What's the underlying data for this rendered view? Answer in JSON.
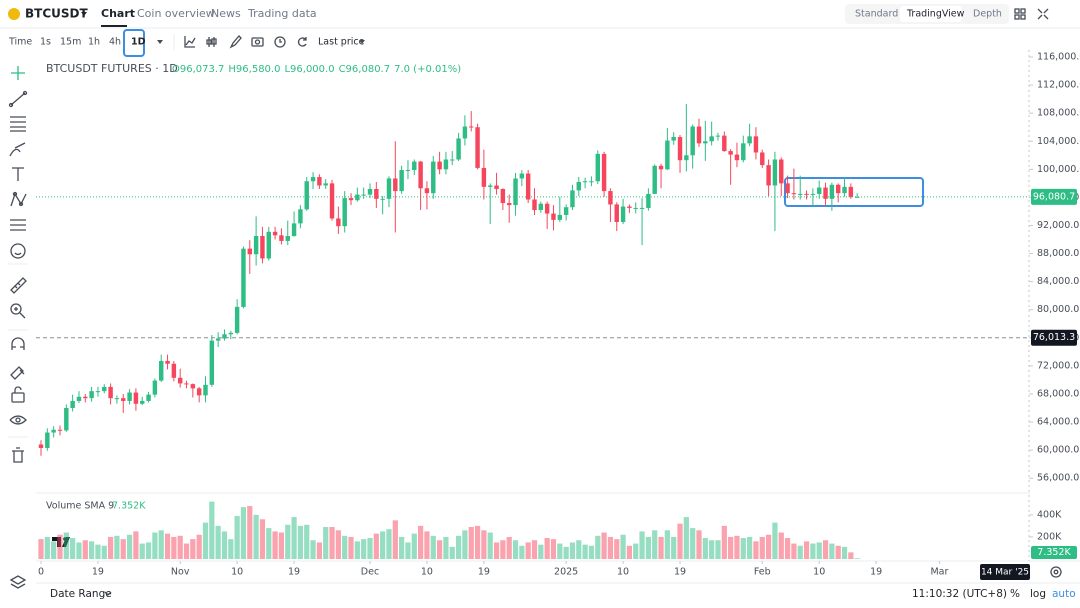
{
  "ui": {
    "symbol": "BTCUSDT",
    "tabs": [
      "Chart",
      "Coin overview",
      "News",
      "Trading data"
    ],
    "views": [
      "Standard",
      "TradingView",
      "Depth"
    ],
    "intervals": [
      "Time",
      "1s",
      "15m",
      "1h",
      "4h",
      "1D"
    ],
    "price_type": "Last price",
    "legend": [
      "O96,073.7",
      "H96,580.0",
      "L96,000.0",
      "C96,080.7",
      "7.0 (+0.01%)"
    ],
    "crosshair_date": "14 Mar '25",
    "date_range": "Date Range",
    "clock": "11:10:32 (UTC+8)",
    "scale_options": [
      "%",
      "log",
      "auto"
    ]
  },
  "chart_data": {
    "type": "candlestick",
    "title": "BTCUSDT FUTURES · 1D",
    "up_color": "#2ebd85",
    "down_color": "#f6465d",
    "grid": false,
    "open": [
      60800,
      60300,
      62500,
      62900,
      62800,
      66000,
      67000,
      67600,
      67400,
      68400,
      68400,
      69000,
      67400,
      67400,
      67000,
      68200,
      66600,
      67000,
      67900,
      69900,
      72700,
      72300,
      70300,
      69500,
      69400,
      68800,
      67800,
      69300,
      75600,
      75900,
      76500,
      76700,
      80400,
      88700,
      87900,
      90500,
      87300,
      91100,
      90600,
      89800,
      90500,
      92300,
      94300,
      98300,
      98900,
      97700,
      98000,
      93000,
      91900,
      95900,
      95600,
      96400,
      96400,
      97200,
      95800,
      95800,
      98700,
      96900,
      99900,
      99900,
      101100,
      97300,
      96600,
      101100,
      100000,
      101400,
      101400,
      104400,
      106100,
      106000,
      100200,
      97500,
      97700,
      97200,
      95200,
      94900,
      98700,
      99400,
      95700,
      94200,
      95100,
      93700,
      92800,
      93500,
      94600,
      97000,
      98200,
      98300,
      98300,
      102200,
      96900,
      95000,
      92500,
      94700,
      94500,
      94500,
      94500,
      96500,
      100500,
      100000,
      104100,
      104600,
      101300,
      102000,
      106100,
      103700,
      104000,
      104700,
      104800,
      102600,
      102100,
      101300,
      103700,
      104700,
      102400,
      100600,
      97700,
      101400,
      98000,
      96600,
      96500,
      96500,
      96400,
      96500,
      97400,
      95800,
      97800,
      96600,
      97500,
      96073.7
    ],
    "high": [
      61400,
      63100,
      63400,
      63500,
      66500,
      67900,
      68400,
      68000,
      69000,
      69000,
      69400,
      69500,
      67800,
      68000,
      68700,
      68800,
      67600,
      68300,
      70200,
      73600,
      73600,
      72700,
      71600,
      69900,
      69500,
      69000,
      70500,
      76400,
      76800,
      77200,
      77000,
      81500,
      89000,
      89900,
      93300,
      91800,
      91800,
      91800,
      91600,
      92700,
      94000,
      94900,
      98900,
      99600,
      99300,
      98600,
      98500,
      94700,
      96900,
      96600,
      97400,
      97400,
      98000,
      98200,
      96200,
      99000,
      104000,
      100500,
      101300,
      101400,
      101200,
      98300,
      101900,
      102500,
      102500,
      102600,
      105200,
      107700,
      108300,
      106500,
      102800,
      98000,
      99500,
      97300,
      96400,
      99500,
      99900,
      99900,
      97300,
      95400,
      95400,
      94900,
      96100,
      95000,
      97800,
      98900,
      98800,
      99000,
      102700,
      102500,
      97300,
      95300,
      95800,
      95000,
      95300,
      95900,
      97300,
      100700,
      100800,
      105900,
      105300,
      104900,
      109300,
      106400,
      107200,
      106900,
      106800,
      105200,
      105400,
      102900,
      103800,
      104800,
      106500,
      106000,
      102800,
      101400,
      102500,
      101700,
      99100,
      100100,
      99100,
      97000,
      97300,
      98400,
      98100,
      98100,
      98000,
      98800,
      98000,
      96580
    ],
    "low": [
      59200,
      59900,
      61800,
      62100,
      62600,
      65500,
      66700,
      66800,
      66900,
      67600,
      68100,
      66500,
      66600,
      65300,
      66500,
      65600,
      66400,
      66800,
      67500,
      69700,
      71500,
      69800,
      68900,
      68800,
      67500,
      66800,
      66800,
      69000,
      74700,
      75600,
      75800,
      76500,
      80200,
      85100,
      86300,
      86600,
      87000,
      90000,
      89300,
      89200,
      90400,
      91600,
      94100,
      97200,
      97200,
      97200,
      92700,
      90800,
      91000,
      94900,
      95400,
      95800,
      95900,
      94500,
      93600,
      94600,
      91000,
      96500,
      98600,
      99200,
      94200,
      94300,
      95800,
      99300,
      99300,
      100600,
      101200,
      103400,
      105400,
      100000,
      95700,
      92200,
      96400,
      94200,
      92400,
      93400,
      97600,
      95200,
      93500,
      93800,
      91500,
      91300,
      92500,
      92700,
      94200,
      96200,
      97300,
      97600,
      97900,
      96100,
      92500,
      91200,
      92200,
      93800,
      93700,
      89200,
      94100,
      96500,
      97300,
      99900,
      103500,
      99500,
      99700,
      100100,
      103200,
      101200,
      103400,
      104100,
      102500,
      97800,
      100300,
      101000,
      103300,
      101400,
      100200,
      96200,
      91200,
      96200,
      95900,
      95700,
      95700,
      95700,
      94700,
      95800,
      94800,
      94100,
      95300,
      96100,
      95800,
      96000
    ],
    "close": [
      60300,
      62500,
      62900,
      62800,
      66000,
      67000,
      67600,
      67400,
      68400,
      68400,
      69000,
      67400,
      67400,
      67000,
      68200,
      66600,
      67000,
      67900,
      69900,
      72700,
      72300,
      70300,
      69500,
      69400,
      68800,
      67800,
      69300,
      75600,
      75900,
      76500,
      76700,
      80400,
      88700,
      87900,
      90500,
      87300,
      91100,
      90600,
      89800,
      90500,
      92300,
      94300,
      98300,
      98900,
      97700,
      98000,
      93000,
      91900,
      95900,
      95600,
      96400,
      96400,
      97200,
      95800,
      95800,
      98700,
      96900,
      99900,
      99900,
      101100,
      97300,
      96600,
      101100,
      100000,
      101400,
      101400,
      104400,
      106100,
      106000,
      100200,
      97500,
      97700,
      97200,
      95200,
      94900,
      98700,
      99400,
      95700,
      94200,
      95100,
      93700,
      92800,
      93500,
      94600,
      97000,
      98200,
      98300,
      98300,
      102200,
      96900,
      95000,
      92500,
      94700,
      94500,
      94500,
      94500,
      96500,
      100500,
      100000,
      104100,
      104600,
      101300,
      102000,
      106100,
      103700,
      104000,
      104700,
      104800,
      102600,
      102100,
      101300,
      103700,
      104700,
      102400,
      100600,
      97700,
      101400,
      98000,
      96600,
      96500,
      96500,
      96400,
      96500,
      97400,
      95800,
      97800,
      96600,
      97500,
      96073.7,
      96080.7
    ],
    "xlim": [
      0,
      156
    ],
    "xticks": [
      {
        "value": 0,
        "label": "0"
      },
      {
        "value": 9,
        "label": "19"
      },
      {
        "value": 22,
        "label": "Nov"
      },
      {
        "value": 31,
        "label": "10"
      },
      {
        "value": 40,
        "label": "19"
      },
      {
        "value": 52,
        "label": "Dec"
      },
      {
        "value": 61,
        "label": "10"
      },
      {
        "value": 70,
        "label": "19"
      },
      {
        "value": 83,
        "label": "2025"
      },
      {
        "value": 92,
        "label": "10"
      },
      {
        "value": 101,
        "label": "19"
      },
      {
        "value": 114,
        "label": "Feb"
      },
      {
        "value": 123,
        "label": "10"
      },
      {
        "value": 132,
        "label": "19"
      },
      {
        "value": 142,
        "label": "Mar"
      }
    ],
    "ylim": [
      54600,
      117000
    ],
    "yticks": [
      {
        "value": 116000,
        "label": "116,000.0"
      },
      {
        "value": 112000,
        "label": "112,000.0"
      },
      {
        "value": 108000,
        "label": "108,000.0"
      },
      {
        "value": 104000,
        "label": "104,000.0"
      },
      {
        "value": 100000,
        "label": "100,000.0"
      },
      {
        "value": 96000,
        "label": "96,000.0"
      },
      {
        "value": 92000,
        "label": "92,000.0"
      },
      {
        "value": 88000,
        "label": "88,000.0"
      },
      {
        "value": 84000,
        "label": "84,000.0"
      },
      {
        "value": 80000,
        "label": "80,000.0"
      },
      {
        "value": 76000,
        "label": "76,000.0"
      },
      {
        "value": 72000,
        "label": "72,000.0"
      },
      {
        "value": 68000,
        "label": "68,000.0"
      },
      {
        "value": 64000,
        "label": "64,000.0"
      },
      {
        "value": 60000,
        "label": "60,000.0"
      },
      {
        "value": 56000,
        "label": "56,000.0"
      }
    ],
    "last_price": {
      "value": 96080.7,
      "label": "96,080.7"
    },
    "price_line": {
      "value": 76013.3,
      "label": "76,013.3"
    },
    "volume": {
      "name": "Volume SMA 9",
      "value_label": "7.352K",
      "values": [
        180,
        200,
        160,
        220,
        240,
        190,
        150,
        170,
        160,
        130,
        120,
        200,
        210,
        180,
        220,
        250,
        140,
        150,
        240,
        260,
        230,
        200,
        210,
        140,
        180,
        220,
        330,
        520,
        300,
        250,
        180,
        390,
        470,
        480,
        400,
        360,
        280,
        250,
        240,
        310,
        380,
        300,
        310,
        170,
        150,
        290,
        290,
        260,
        210,
        200,
        160,
        180,
        190,
        230,
        250,
        270,
        350,
        200,
        150,
        230,
        300,
        250,
        210,
        170,
        200,
        110,
        210,
        260,
        290,
        300,
        260,
        240,
        150,
        170,
        200,
        170,
        120,
        150,
        170,
        130,
        190,
        180,
        140,
        110,
        150,
        170,
        130,
        120,
        210,
        240,
        200,
        180,
        220,
        120,
        140,
        250,
        200,
        260,
        200,
        260,
        200,
        320,
        380,
        280,
        260,
        190,
        170,
        170,
        300,
        200,
        210,
        190,
        200,
        160,
        200,
        220,
        330,
        240,
        190,
        140,
        120,
        160,
        140,
        150,
        170,
        140,
        120,
        110,
        60,
        7.352
      ],
      "ylim": [
        0,
        580
      ],
      "yticks": [
        {
          "value": 200,
          "label": "200K"
        },
        {
          "value": 400,
          "label": "400K"
        }
      ]
    }
  }
}
